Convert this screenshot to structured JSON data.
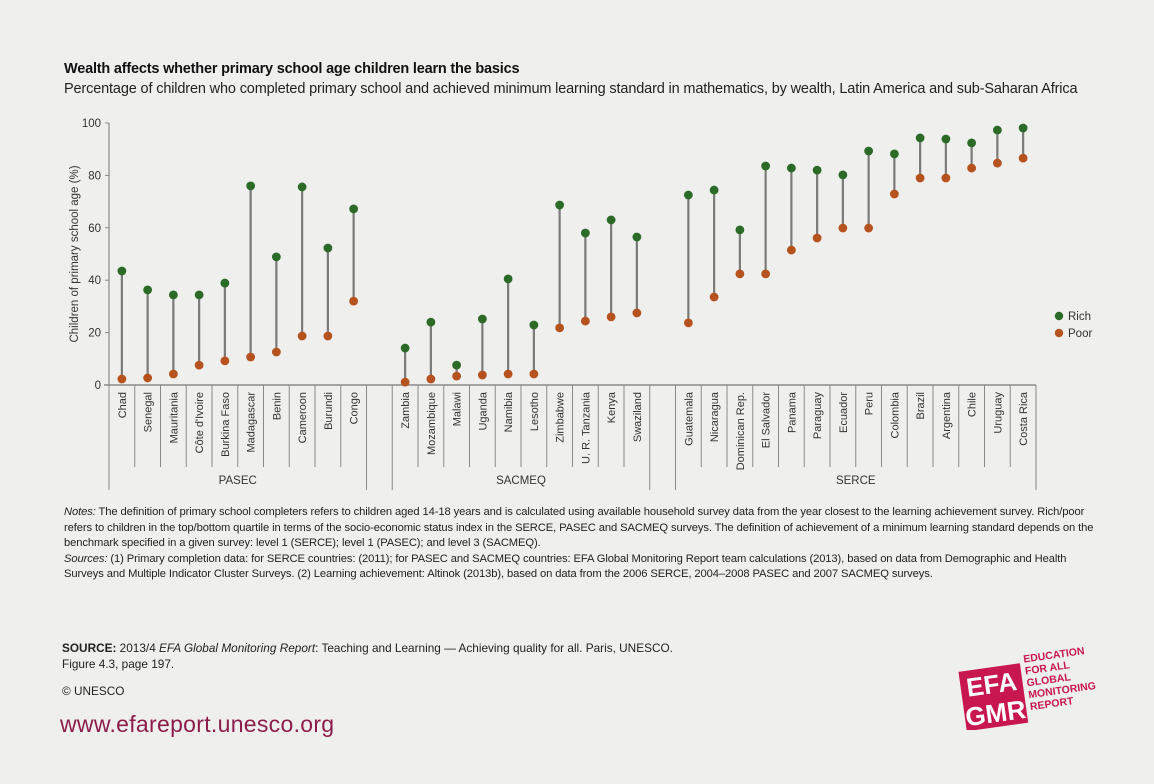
{
  "header": {
    "title": "Wealth affects whether primary school age children learn the basics",
    "subtitle": "Percentage of children who completed primary school and achieved minimum learning standard in mathematics, by wealth, Latin America and sub-Saharan Africa"
  },
  "chart_data": {
    "type": "dumbbell",
    "title": "Wealth affects whether primary school age children learn the basics",
    "subtitle": "Percentage of children who completed primary school and achieved minimum learning standard in mathematics, by wealth, Latin America and sub-Saharan Africa",
    "xlabel": "",
    "ylabel": "Children of primary school age (%)",
    "ylim": [
      0,
      100
    ],
    "yticks": [
      0,
      20,
      40,
      60,
      80,
      100
    ],
    "grid": false,
    "legend_position": "right",
    "colors": {
      "rich": "#2b6b27",
      "poor": "#b5521d",
      "connector": "#7a7a7a"
    },
    "series": [
      {
        "name": "Rich",
        "key": "rich"
      },
      {
        "name": "Poor",
        "key": "poor"
      }
    ],
    "groups": [
      {
        "name": "PASEC",
        "countries": [
          {
            "name": "Chad",
            "rich": 43.5,
            "poor": 2.3
          },
          {
            "name": "Senegal",
            "rich": 36.3,
            "poor": 2.7
          },
          {
            "name": "Mauritania",
            "rich": 34.4,
            "poor": 4.2
          },
          {
            "name": "Côte d'Ivoire",
            "rich": 34.4,
            "poor": 7.6
          },
          {
            "name": "Burkina Faso",
            "rich": 38.9,
            "poor": 9.2
          },
          {
            "name": "Madagascar",
            "rich": 76.0,
            "poor": 10.7
          },
          {
            "name": "Benin",
            "rich": 48.9,
            "poor": 12.6
          },
          {
            "name": "Cameroon",
            "rich": 75.6,
            "poor": 18.7
          },
          {
            "name": "Burundi",
            "rich": 52.3,
            "poor": 18.7
          },
          {
            "name": "Congo",
            "rich": 67.2,
            "poor": 32.0
          }
        ]
      },
      {
        "name": "SACMEQ",
        "countries": [
          {
            "name": "Zambia",
            "rich": 14.1,
            "poor": 1.1
          },
          {
            "name": "Mozambique",
            "rich": 24.0,
            "poor": 2.3
          },
          {
            "name": "Malawi",
            "rich": 7.6,
            "poor": 3.4
          },
          {
            "name": "Uganda",
            "rich": 25.2,
            "poor": 3.8
          },
          {
            "name": "Namibia",
            "rich": 40.5,
            "poor": 4.2
          },
          {
            "name": "Lesotho",
            "rich": 22.9,
            "poor": 4.2
          },
          {
            "name": "Zimbabwe",
            "rich": 68.7,
            "poor": 21.8
          },
          {
            "name": "U. R. Tanzania",
            "rich": 58.0,
            "poor": 24.4
          },
          {
            "name": "Kenya",
            "rich": 63.0,
            "poor": 26.0
          },
          {
            "name": "Swaziland",
            "rich": 56.5,
            "poor": 27.5
          }
        ]
      },
      {
        "name": "SERCE",
        "countries": [
          {
            "name": "Guatemala",
            "rich": 72.5,
            "poor": 23.7
          },
          {
            "name": "Nicaragua",
            "rich": 74.4,
            "poor": 33.6
          },
          {
            "name": "Dominican Rep.",
            "rich": 59.2,
            "poor": 42.4
          },
          {
            "name": "El Salvador",
            "rich": 83.6,
            "poor": 42.4
          },
          {
            "name": "Panama",
            "rich": 82.8,
            "poor": 51.5
          },
          {
            "name": "Paraguay",
            "rich": 82.0,
            "poor": 56.1
          },
          {
            "name": "Ecuador",
            "rich": 80.2,
            "poor": 59.9
          },
          {
            "name": "Peru",
            "rich": 89.3,
            "poor": 59.9
          },
          {
            "name": "Colombia",
            "rich": 88.2,
            "poor": 72.9
          },
          {
            "name": "Brazil",
            "rich": 94.3,
            "poor": 79.0
          },
          {
            "name": "Argentina",
            "rich": 93.9,
            "poor": 79.0
          },
          {
            "name": "Chile",
            "rich": 92.4,
            "poor": 82.8
          },
          {
            "name": "Uruguay",
            "rich": 97.3,
            "poor": 84.7
          },
          {
            "name": "Costa Rica",
            "rich": 98.1,
            "poor": 86.6
          }
        ]
      }
    ]
  },
  "notes": {
    "notes_label": "Notes:",
    "notes_text": " The definition of primary school completers refers to children aged 14-18 years and is calculated using available household survey data from the year closest to the learning achievement survey. Rich/poor refers to children in the top/bottom quartile in terms of the socio-economic status index in the SERCE, PASEC and SACMEQ surveys. The definition of achievement of a minimum learning standard depends on the benchmark specified in a given survey: level 1 (SERCE); level 1 (PASEC); and level 3 (SACMEQ).",
    "sources_label": "Sources:",
    "sources_text": " (1) Primary completion data: for SERCE countries: (2011); for PASEC and SACMEQ countries: EFA Global Monitoring Report team calculations (2013), based on data from Demographic and Health Surveys and Multiple Indicator Cluster Surveys. (2) Learning achievement: Altinok (2013b), based on data from the 2006 SERCE, 2004–2008 PASEC and 2007 SACMEQ surveys."
  },
  "footer": {
    "source_label": "SOURCE:",
    "source_pre": " 2013/4 ",
    "source_italic": "EFA Global Monitoring Report",
    "source_post": ": Teaching and Learning — Achieving quality for all. Paris, UNESCO.",
    "source_line2": "Figure 4.3, page 197.",
    "copyright": "© UNESCO",
    "url": "www.efareport.unesco.org"
  },
  "logo": {
    "letters_top": "EFA",
    "letters_bottom": "GMR",
    "text_lines": [
      "EDUCATION",
      "FOR ALL",
      "GLOBAL",
      "MONITORING",
      "REPORT"
    ],
    "color": "#c8174f"
  }
}
